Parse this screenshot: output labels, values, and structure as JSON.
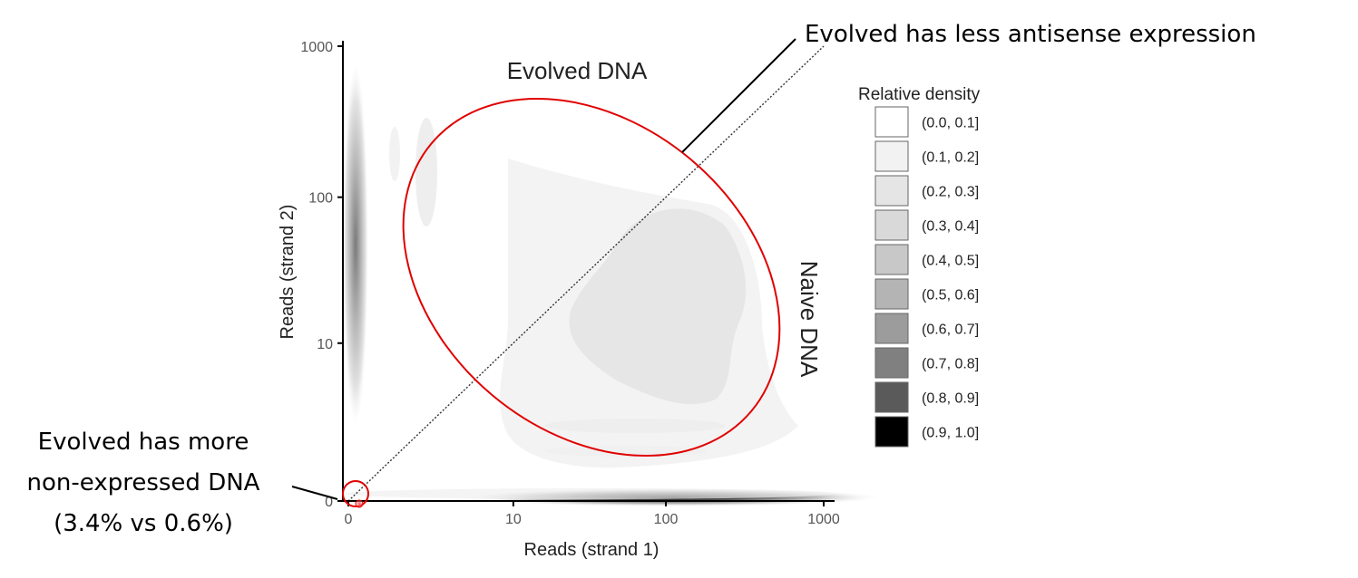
{
  "chart_data": {
    "type": "heatmap",
    "xlabel": "Reads (strand 1)",
    "ylabel": "Reads (strand 2)",
    "x_scale": "log1p",
    "y_scale": "log1p",
    "xlim": [
      0,
      1000
    ],
    "ylim": [
      0,
      1000
    ],
    "x_ticks": [
      {
        "value": 0,
        "label": "0"
      },
      {
        "value": 10,
        "label": "10"
      },
      {
        "value": 100,
        "label": "100"
      },
      {
        "value": 1000,
        "label": "1000"
      }
    ],
    "y_ticks": [
      {
        "value": 0,
        "label": "0"
      },
      {
        "value": 10,
        "label": "10"
      },
      {
        "value": 100,
        "label": "100"
      },
      {
        "value": 1000,
        "label": "1000"
      }
    ],
    "diagonal": "y = x (dotted)",
    "grid": false,
    "legend": {
      "title": "Relative density",
      "placement": "right",
      "bins": [
        {
          "label": "(0.0, 0.1]",
          "color": "#ffffff"
        },
        {
          "label": "(0.1, 0.2]",
          "color": "#f2f2f2"
        },
        {
          "label": "(0.2, 0.3]",
          "color": "#e5e5e5"
        },
        {
          "label": "(0.3, 0.4]",
          "color": "#d9d9d9"
        },
        {
          "label": "(0.4, 0.5]",
          "color": "#c8c8c8"
        },
        {
          "label": "(0.5, 0.6]",
          "color": "#b4b4b4"
        },
        {
          "label": "(0.6, 0.7]",
          "color": "#9c9c9c"
        },
        {
          "label": "(0.7, 0.8]",
          "color": "#808080"
        },
        {
          "label": "(0.8, 0.9]",
          "color": "#5a5a5a"
        },
        {
          "label": "(0.9, 1.0]",
          "color": "#000000"
        }
      ]
    },
    "regions": [
      {
        "label": "Evolved DNA",
        "position": "above diagonal"
      },
      {
        "label": "Naive DNA",
        "position": "below diagonal"
      }
    ],
    "annotations": [
      {
        "text": "Evolved has less antisense expression",
        "position": "top-right"
      },
      {
        "lines": [
          "Evolved has more",
          "non-expressed DNA",
          "(3.4% vs 0.6%)"
        ],
        "position": "bottom-left"
      }
    ],
    "highlight_color": "#e00000"
  }
}
